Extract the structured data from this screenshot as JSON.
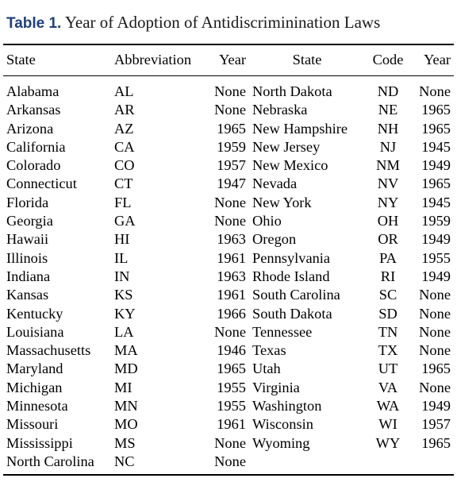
{
  "caption": {
    "label": "Table 1.",
    "title": "Year of Adoption of Antidiscriminination Laws"
  },
  "headers": [
    "State",
    "Abbreviation",
    "Year",
    "State",
    "Code",
    "Year"
  ],
  "rows": [
    [
      "Alabama",
      "AL",
      "None",
      "North Dakota",
      "ND",
      "None"
    ],
    [
      "Arkansas",
      "AR",
      "None",
      "Nebraska",
      "NE",
      "1965"
    ],
    [
      "Arizona",
      "AZ",
      "1965",
      "New Hampshire",
      "NH",
      "1965"
    ],
    [
      "California",
      "CA",
      "1959",
      "New Jersey",
      "NJ",
      "1945"
    ],
    [
      "Colorado",
      "CO",
      "1957",
      "New Mexico",
      "NM",
      "1949"
    ],
    [
      "Connecticut",
      "CT",
      "1947",
      "Nevada",
      "NV",
      "1965"
    ],
    [
      "Florida",
      "FL",
      "None",
      "New York",
      "NY",
      "1945"
    ],
    [
      "Georgia",
      "GA",
      "None",
      "Ohio",
      "OH",
      "1959"
    ],
    [
      "Hawaii",
      "HI",
      "1963",
      "Oregon",
      "OR",
      "1949"
    ],
    [
      "Illinois",
      "IL",
      "1961",
      "Pennsylvania",
      "PA",
      "1955"
    ],
    [
      "Indiana",
      "IN",
      "1963",
      "Rhode Island",
      "RI",
      "1949"
    ],
    [
      "Kansas",
      "KS",
      "1961",
      "South Carolina",
      "SC",
      "None"
    ],
    [
      "Kentucky",
      "KY",
      "1966",
      "South Dakota",
      "SD",
      "None"
    ],
    [
      "Louisiana",
      "LA",
      "None",
      "Tennessee",
      "TN",
      "None"
    ],
    [
      "Massachusetts",
      "MA",
      "1946",
      "Texas",
      "TX",
      "None"
    ],
    [
      "Maryland",
      "MD",
      "1965",
      "Utah",
      "UT",
      "1965"
    ],
    [
      "Michigan",
      "MI",
      "1955",
      "Virginia",
      "VA",
      "None"
    ],
    [
      "Minnesota",
      "MN",
      "1955",
      "Washington",
      "WA",
      "1949"
    ],
    [
      "Missouri",
      "MO",
      "1961",
      "Wisconsin",
      "WI",
      "1957"
    ],
    [
      "Mississippi",
      "MS",
      "None",
      "Wyoming",
      "WY",
      "1965"
    ],
    [
      "North Carolina",
      "NC",
      "None",
      "",
      "",
      ""
    ]
  ],
  "colors": {
    "label": "#1f3f7f",
    "text": "#000000"
  }
}
